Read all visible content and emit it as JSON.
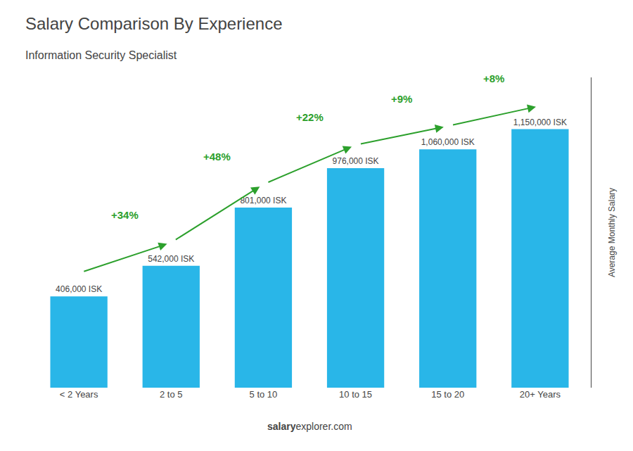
{
  "chart_data": {
    "type": "bar",
    "title": "Salary Comparison By Experience",
    "subtitle": "Information Security Specialist",
    "ylabel": "Average Monthly Salary",
    "categories": [
      "< 2 Years",
      "2 to 5",
      "5 to 10",
      "10 to 15",
      "15 to 20",
      "20+ Years"
    ],
    "values": [
      406000,
      542000,
      801000,
      976000,
      1060000,
      1150000
    ],
    "value_labels": [
      "406,000 ISK",
      "542,000 ISK",
      "801,000 ISK",
      "976,000 ISK",
      "1,060,000 ISK",
      "1,150,000 ISK"
    ],
    "data_labels": true,
    "annotations": [
      "+34%",
      "+48%",
      "+22%",
      "+9%",
      "+8%"
    ],
    "footer": [
      "salary",
      "explorer.com"
    ],
    "color": "#29b6e8",
    "ylim": [
      0,
      1380000
    ],
    "tick_labels": "x",
    "grid": false
  }
}
